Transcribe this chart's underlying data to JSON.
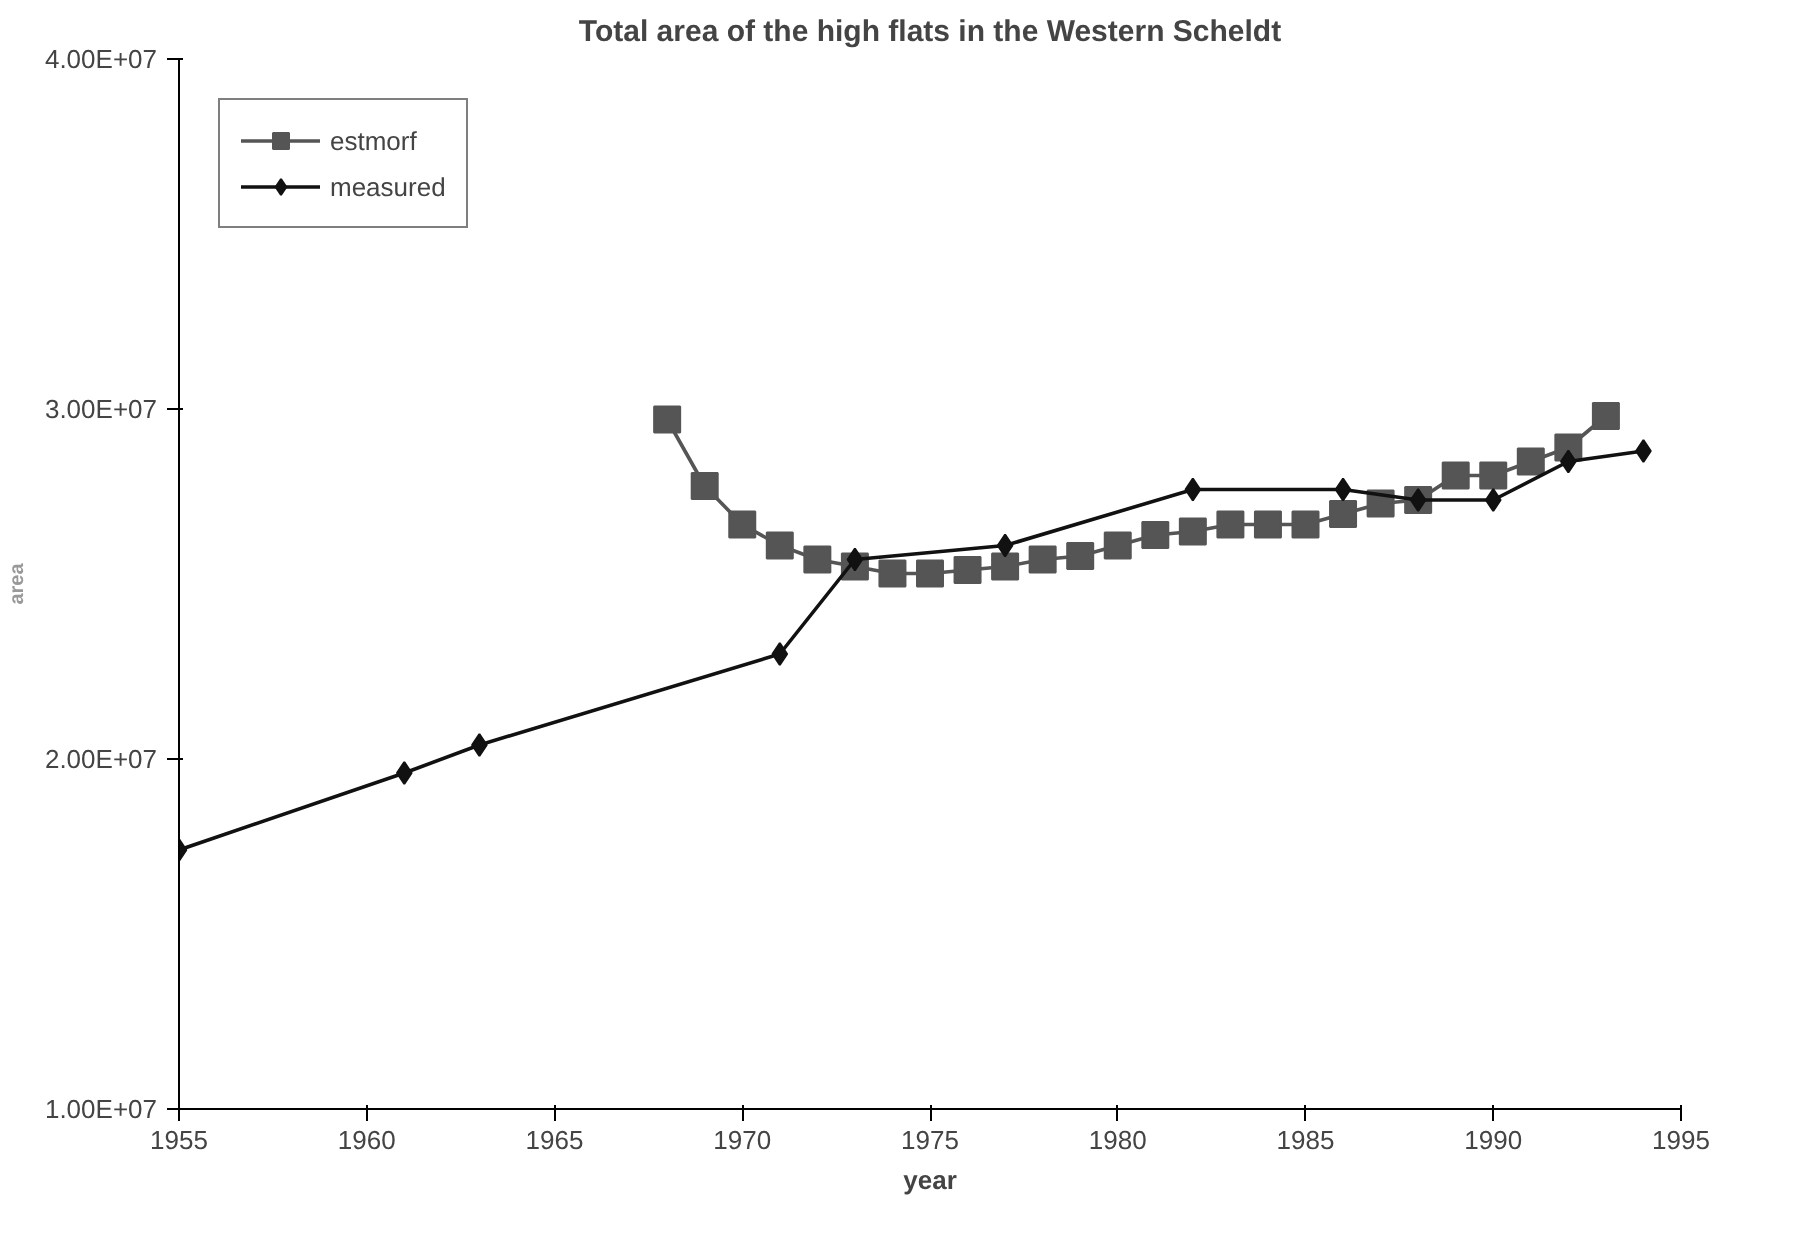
{
  "chart_data": {
    "type": "line",
    "title": "Total area of the high flats in the Western Scheldt",
    "xlabel": "year",
    "ylabel": "area",
    "xlim": [
      1955,
      1995
    ],
    "xticks": [
      1955,
      1960,
      1965,
      1970,
      1975,
      1980,
      1985,
      1990,
      1995
    ],
    "ylim": [
      10000000,
      40000000
    ],
    "yticks": [
      {
        "value": 10000000,
        "label": "1.00E+07"
      },
      {
        "value": 20000000,
        "label": "2.00E+07"
      },
      {
        "value": 30000000,
        "label": "3.00E+07"
      },
      {
        "value": 40000000,
        "label": "4.00E+07"
      }
    ],
    "grid": false,
    "legend": "top left",
    "series": [
      {
        "name": "estmorf",
        "color": "#555555",
        "marker": "square",
        "x": [
          1968,
          1969,
          1970,
          1971,
          1972,
          1973,
          1974,
          1975,
          1976,
          1977,
          1978,
          1979,
          1980,
          1981,
          1982,
          1983,
          1984,
          1985,
          1986,
          1987,
          1988,
          1989,
          1990,
          1991,
          1992,
          1993
        ],
        "values": [
          29700000,
          27800000,
          26700000,
          26100000,
          25700000,
          25500000,
          25300000,
          25300000,
          25400000,
          25500000,
          25700000,
          25800000,
          26100000,
          26400000,
          26500000,
          26700000,
          26700000,
          26700000,
          27000000,
          27300000,
          27400000,
          28100000,
          28100000,
          28500000,
          28900000,
          29800000
        ]
      },
      {
        "name": "measured",
        "color": "#111111",
        "marker": "diamond",
        "x": [
          1955,
          1961,
          1963,
          1971,
          1973,
          1977,
          1982,
          1986,
          1988,
          1990,
          1992,
          1994
        ],
        "values": [
          17400000,
          19600000,
          20400000,
          23000000,
          25700000,
          26100000,
          27700000,
          27700000,
          27400000,
          27400000,
          28500000,
          28800000
        ]
      }
    ]
  }
}
